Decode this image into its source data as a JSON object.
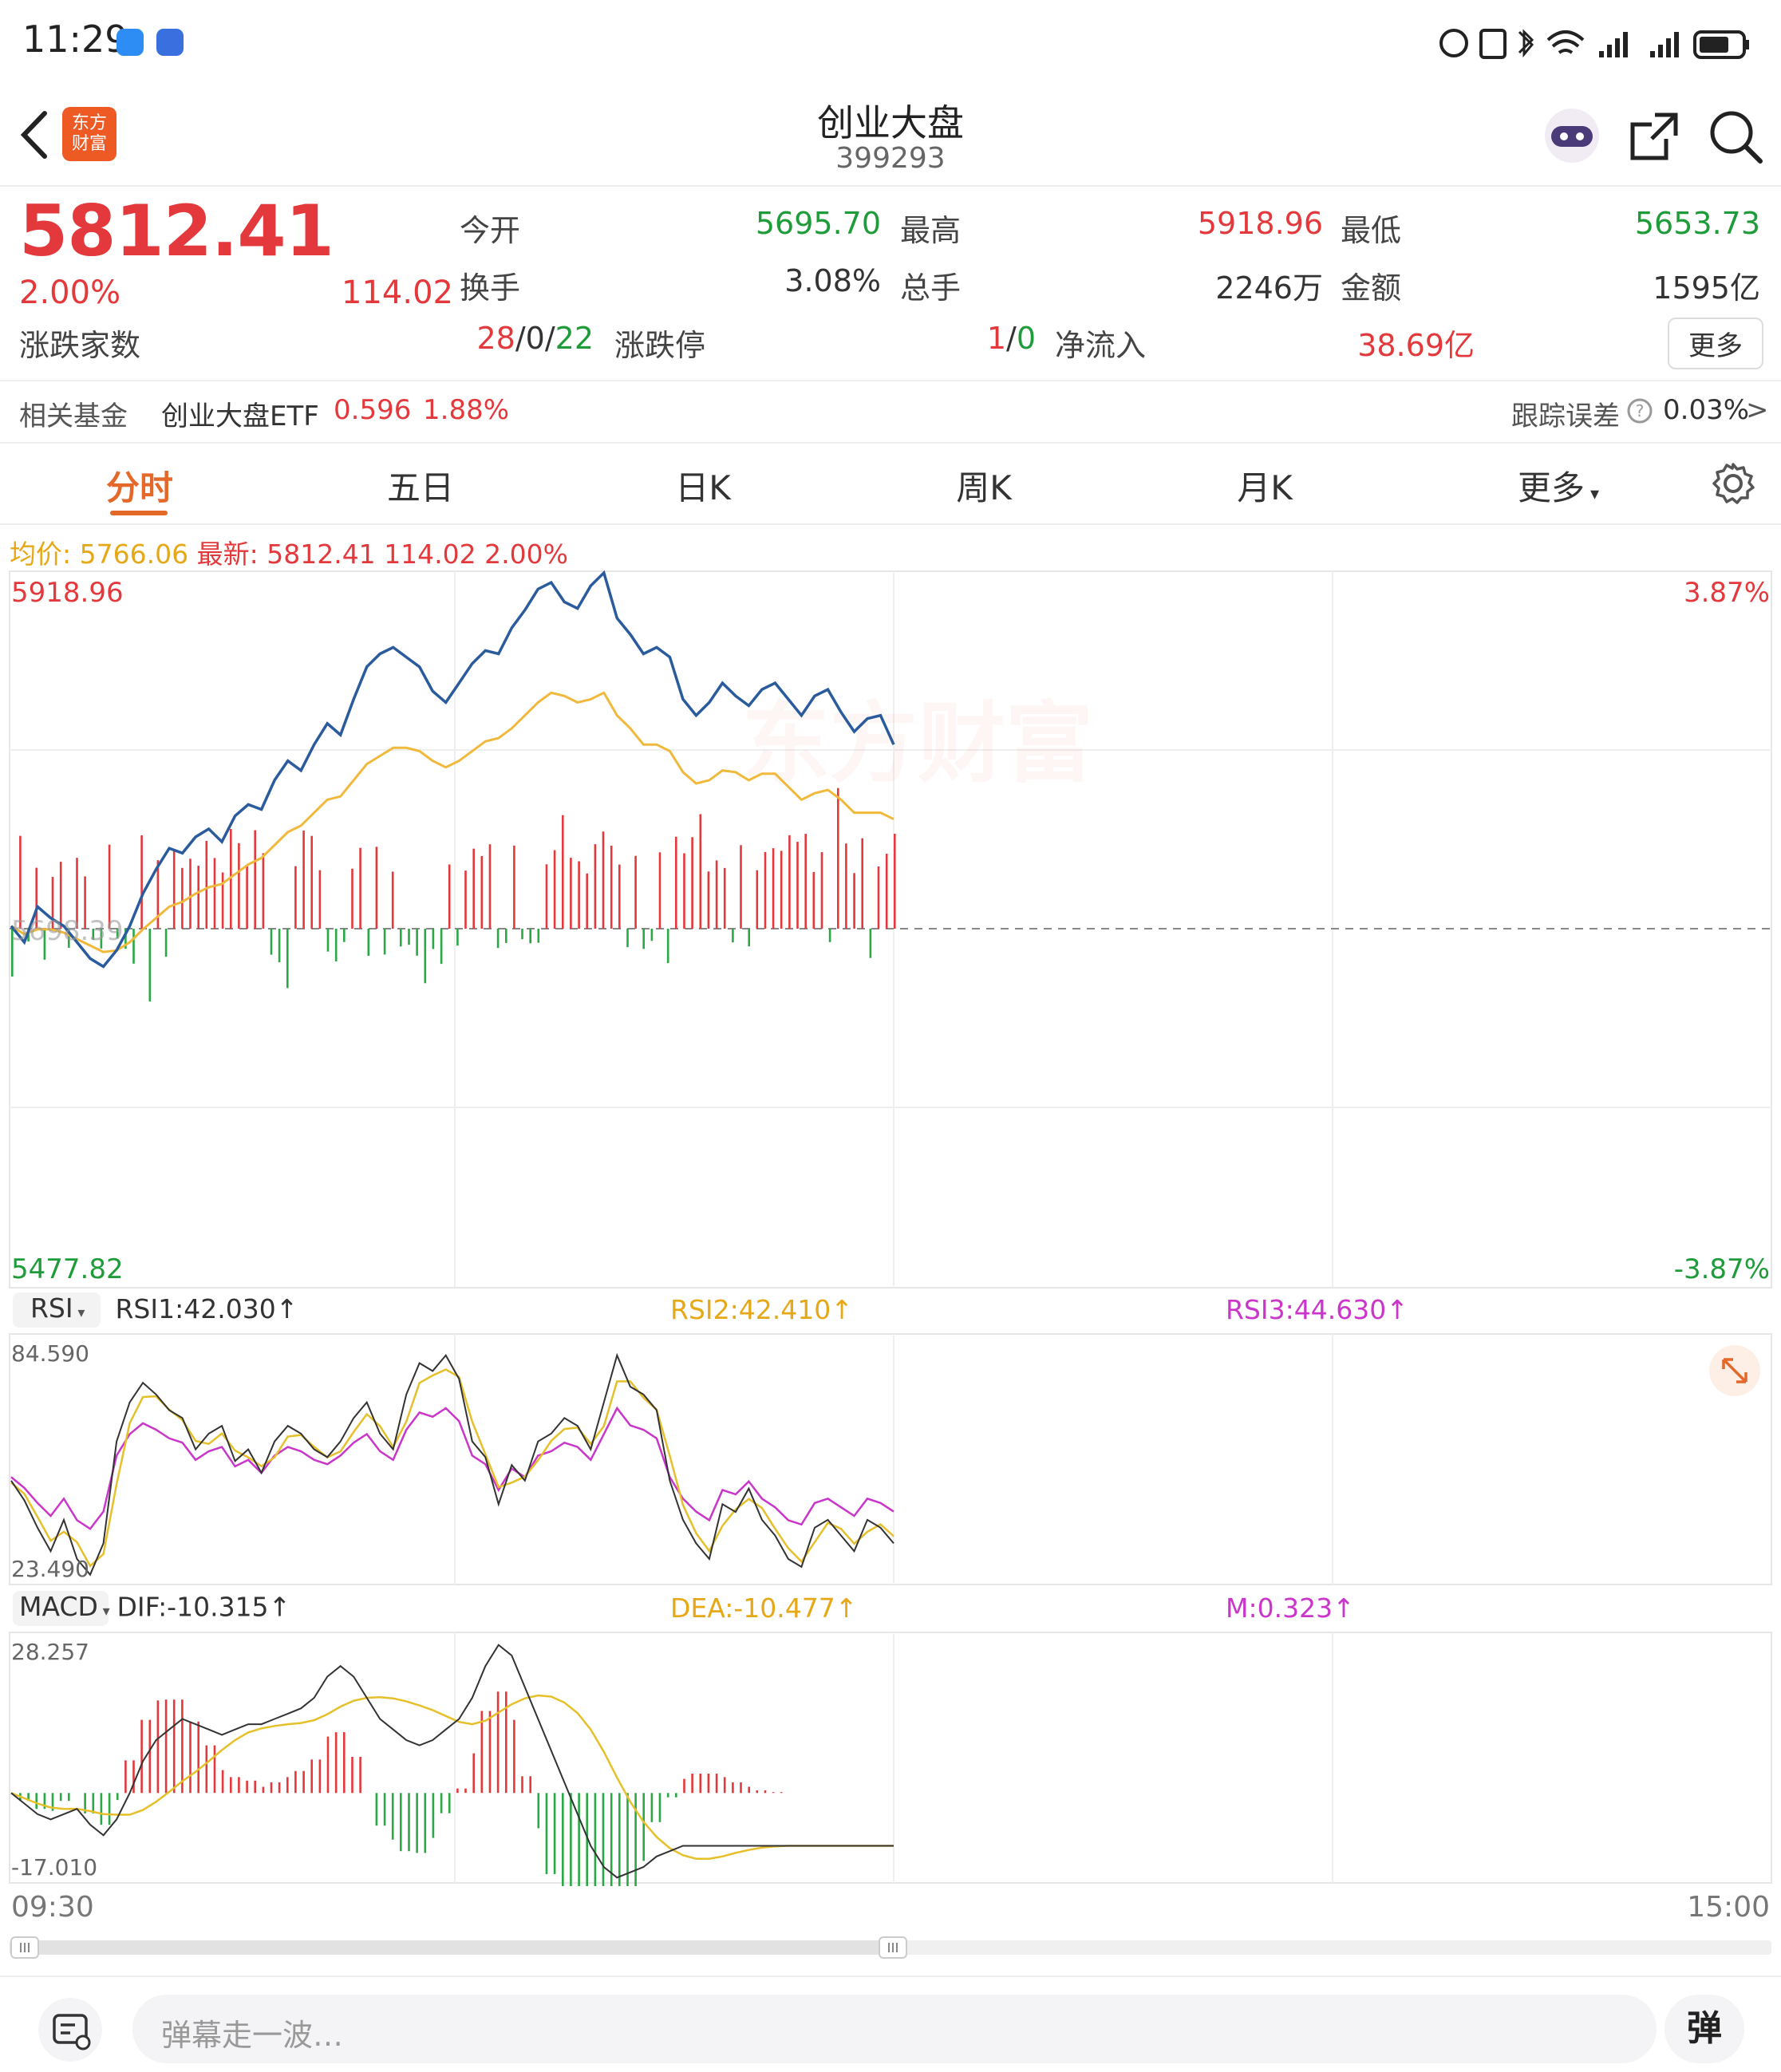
{
  "status_bar": {
    "time": "11:29"
  },
  "nav": {
    "title": "创业大盘",
    "code": "399293",
    "logo_text_1": "东方",
    "logo_text_2": "财富"
  },
  "quote": {
    "price": "5812.41",
    "change_pct": "2.00%",
    "change": "114.02",
    "open_label": "今开",
    "open": "5695.70",
    "high_label": "最高",
    "high": "5918.96",
    "low_label": "最低",
    "low": "5653.73",
    "turnover_label": "换手",
    "turnover": "3.08%",
    "volume_label": "总手",
    "volume": "2246万",
    "amount_label": "金额",
    "amount": "1595亿",
    "breadth_label": "涨跌家数",
    "breadth_up": "28",
    "breadth_flat": "0",
    "breadth_down": "22",
    "limit_label": "涨跌停",
    "limit_up": "1",
    "limit_down": "0",
    "netflow_label": "净流入",
    "netflow": "38.69亿",
    "more": "更多",
    "sep": "/"
  },
  "fund": {
    "label": "相关基金",
    "name": "创业大盘ETF",
    "price": "0.596",
    "pct": "1.88%",
    "tracking_label": "跟踪误差",
    "tracking_value": "0.03%",
    "chevron": ">"
  },
  "tabs": [
    "分时",
    "五日",
    "日K",
    "周K",
    "月K",
    "更多"
  ],
  "main_chart": {
    "avg_label": "均价:",
    "avg_value": "5766.06",
    "latest_label": "最新:",
    "latest_value": "5812.41",
    "latest_change": "114.02",
    "latest_pct": "2.00%",
    "y_high": "5918.96",
    "y_low": "5477.82",
    "y_ref": "5698.39",
    "pct_high": "3.87%",
    "pct_low": "-3.87%",
    "watermark": "东方财富"
  },
  "rsi": {
    "name": "RSI",
    "rsi1": "RSI1:42.030",
    "rsi2": "RSI2:42.410",
    "rsi3": "RSI3:44.630",
    "arrow": "↑",
    "max": "84.590",
    "min": "23.490"
  },
  "macd": {
    "name": "MACD",
    "dif": "DIF:-10.315",
    "dea": "DEA:-10.477",
    "m": "M:0.323",
    "arrow": "↑",
    "max": "28.257",
    "min": "-17.010"
  },
  "time_axis": {
    "start": "09:30",
    "end": "15:00"
  },
  "bottom": {
    "danmu_placeholder": "弹幕走一波…",
    "danmu_button": "弹"
  },
  "colors": {
    "up": "#e4393c",
    "down": "#1f9c3a",
    "price_line": "#2a5b9c",
    "avg_line": "#f0b93b",
    "accent": "#e4682a"
  }
}
